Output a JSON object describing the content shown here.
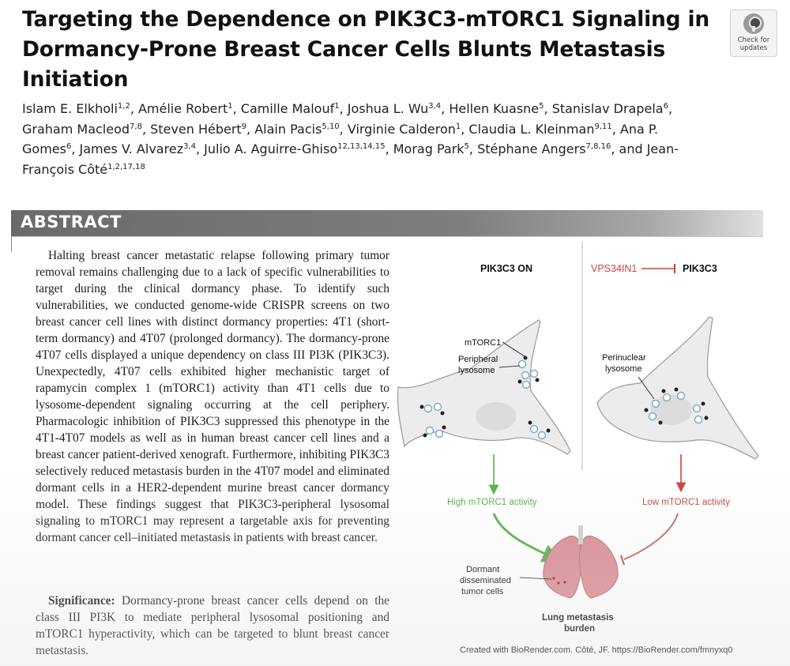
{
  "title": "Targeting the Dependence on PIK3C3-mTORC1 Signaling in Dormancy-Prone Breast Cancer Cells Blunts Metastasis Initiation",
  "check_updates": {
    "label": "Check for\nupdates",
    "icon": "check-for-updates-icon"
  },
  "authors": [
    {
      "name": "Islam E. Elkholi",
      "sup": "1,2",
      "sep": ", "
    },
    {
      "name": "Amélie Robert",
      "sup": "1",
      "sep": ", "
    },
    {
      "name": "Camille Malouf",
      "sup": "1",
      "sep": ", "
    },
    {
      "name": "Joshua L. Wu",
      "sup": "3,4",
      "sep": ", "
    },
    {
      "name": "Hellen Kuasne",
      "sup": "5",
      "sep": ", "
    },
    {
      "name": "Stanislav Drapela",
      "sup": "6",
      "sep": ", "
    },
    {
      "name": "Graham Macleod",
      "sup": "7,8",
      "sep": ", "
    },
    {
      "name": "Steven Hébert",
      "sup": "9",
      "sep": ", "
    },
    {
      "name": "Alain Pacis",
      "sup": "5,10",
      "sep": ", "
    },
    {
      "name": "Virginie Calderon",
      "sup": "1",
      "sep": ", "
    },
    {
      "name": "Claudia L. Kleinman",
      "sup": "9,11",
      "sep": ", "
    },
    {
      "name": "Ana P. Gomes",
      "sup": "6",
      "sep": ", "
    },
    {
      "name": "James V. Alvarez",
      "sup": "3,4",
      "sep": ", "
    },
    {
      "name": "Julio A. Aguirre-Ghiso",
      "sup": "12,13,14,15",
      "sep": ", "
    },
    {
      "name": "Morag Park",
      "sup": "5",
      "sep": ", "
    },
    {
      "name": "Stéphane Angers",
      "sup": "7,8,16",
      "sep": ", and "
    },
    {
      "name": "Jean-François Côté",
      "sup": "1,2,17,18",
      "sep": ""
    }
  ],
  "abstract": {
    "heading": "ABSTRACT",
    "text": "Halting breast cancer metastatic relapse following primary tumor removal remains challenging due to a lack of specific vulnerabilities to target during the clinical dormancy phase. To identify such vulnerabilities, we conducted genome-wide CRISPR screens on two breast cancer cell lines with distinct dormancy properties: 4T1 (short-term dormancy) and 4T07 (prolonged dormancy). The dormancy-prone 4T07 cells displayed a unique dependency on class III PI3K (PIK3C3). Unexpectedly, 4T07 cells exhibited higher mechanistic target of rapamycin complex 1 (mTORC1) activity than 4T1 cells due to lysosome-dependent signaling occurring at the cell periphery. Pharmacologic inhibition of PIK3C3 suppressed this phenotype in the 4T1-4T07 models as well as in human breast cancer cell lines and a breast cancer patient-derived xenograft. Furthermore, inhibiting PIK3C3 selectively reduced metastasis burden in the 4T07 model and eliminated dormant cells in a HER2-dependent murine breast cancer dormancy model. These findings suggest that PIK3C3-peripheral lysosomal signaling to mTORC1 may represent a targetable axis for preventing dormant cancer cell–initiated metastasis in patients with breast cancer.",
    "significance_label": "Significance:",
    "significance_text": " Dormancy-prone breast cancer cells depend on the class III PI3K to mediate peripheral lysosomal positioning and mTORC1 hyperactivity, which can be targeted to blunt breast cancer metastasis."
  },
  "figure": {
    "left_title": "PIK3C3 ON",
    "right_inhibitor": "VPS34IN1",
    "right_target": "PIK3C3",
    "label_mtorc1": "mTORC1",
    "label_peripheral_1": "Peripheral",
    "label_peripheral_2": "lysosome",
    "label_perinuclear_1": "Perinuclear",
    "label_perinuclear_2": "lysosome",
    "high_activity": "High mTORC1 activity",
    "low_activity": "Low mTORC1 activity",
    "dormant_1": "Dormant",
    "dormant_2": "disseminated",
    "dormant_3": "tumor cells",
    "burden_1": "Lung metastasis",
    "burden_2": "burden",
    "credit": "Created with BioRender.com. Côté, JF. https://BioRender.com/fmnyxq0",
    "colors": {
      "green": "#57b04a",
      "red": "#c8453f",
      "cell_fill": "#ececec",
      "lung": "#d98e94",
      "lysosome": "#7ea7c4"
    }
  }
}
